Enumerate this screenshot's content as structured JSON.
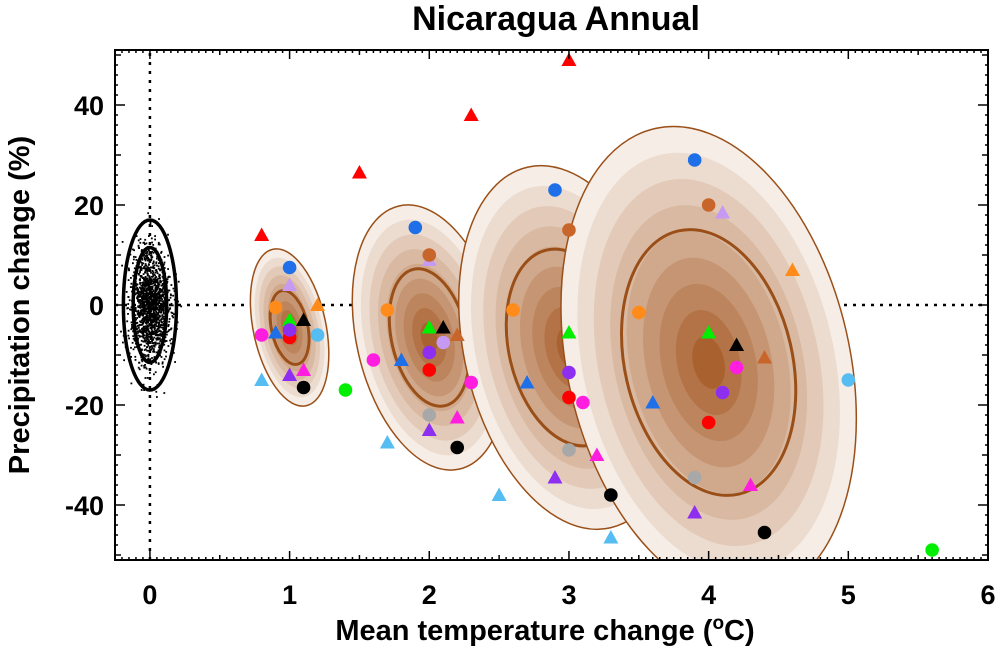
{
  "chart_data": {
    "type": "scatter",
    "title": "Nicaragua Annual",
    "xlabel_main": "Mean temperature change (",
    "xlabel_sup": "o",
    "xlabel_end": "C)",
    "ylabel": "Precipitation change (%)",
    "xlim": [
      -0.25,
      6.0
    ],
    "ylim": [
      -51,
      51
    ],
    "xticks": [
      0,
      1,
      2,
      3,
      4,
      5,
      6
    ],
    "xtick_labels": [
      "0",
      "1",
      "2",
      "3",
      "4",
      "5",
      "6"
    ],
    "yticks": [
      -40,
      -20,
      0,
      20,
      40
    ],
    "ytick_labels": [
      "-40",
      "-20",
      "0",
      "20",
      "40"
    ],
    "colors": {
      "contour_line": "#9a4f18",
      "shade_light": "#f6ede6",
      "shade_dark": "#a9622f",
      "red": "#ff0000",
      "orange": "#ff8c1a",
      "blue": "#1e6fe8",
      "light_blue": "#55bdf2",
      "green": "#00ee00",
      "magenta": "#ff1ee0",
      "violet": "#8e2ef0",
      "lavender": "#c69af2",
      "brown": "#c8652a",
      "gray": "#a8a8a8",
      "black": "#000000"
    },
    "control_distribution": {
      "center": [
        0,
        0
      ],
      "sd_x": 0.07,
      "sd_y": 5.5,
      "n_points": 1600,
      "contours": [
        {
          "rx": 0.12,
          "ry": 11.5
        },
        {
          "rx": 0.19,
          "ry": 17
        }
      ]
    },
    "pdf_ellipses": [
      {
        "center": [
          1.0,
          -4.5
        ],
        "rx": 0.26,
        "ry": 16,
        "angle": -12,
        "inner": [
          0.13,
          7.5
        ]
      },
      {
        "center": [
          2.0,
          -6.5
        ],
        "rx": 0.52,
        "ry": 27,
        "angle": -13,
        "inner": [
          0.27,
          14
        ]
      },
      {
        "center": [
          3.0,
          -8.5
        ],
        "rx": 0.75,
        "ry": 37,
        "angle": -13,
        "inner": [
          0.43,
          20
        ]
      },
      {
        "center": [
          4.0,
          -11.5
        ],
        "rx": 1.01,
        "ry": 48,
        "angle": -13,
        "inner": [
          0.6,
          27
        ]
      }
    ],
    "series": [
      {
        "name": "red-circles",
        "marker": "circle",
        "color": "red",
        "points": [
          [
            1.0,
            -6.5
          ],
          [
            2.0,
            -13
          ],
          [
            3.0,
            -18.5
          ],
          [
            4.0,
            -23.5
          ]
        ]
      },
      {
        "name": "red-triangles",
        "marker": "triangle",
        "color": "red",
        "points": [
          [
            0.8,
            14
          ],
          [
            1.5,
            26.5
          ],
          [
            2.3,
            38
          ],
          [
            3.0,
            49
          ]
        ]
      },
      {
        "name": "orange-circles",
        "marker": "circle",
        "color": "orange",
        "points": [
          [
            0.9,
            -0.5
          ],
          [
            1.7,
            -1
          ],
          [
            2.6,
            -1
          ],
          [
            3.5,
            -1.5
          ]
        ]
      },
      {
        "name": "orange-triangles",
        "marker": "triangle",
        "color": "orange",
        "points": [
          [
            1.2,
            0
          ],
          [
            4.6,
            7
          ]
        ]
      },
      {
        "name": "blue-circles",
        "marker": "circle",
        "color": "blue",
        "points": [
          [
            1.0,
            7.5
          ],
          [
            1.9,
            15.5
          ],
          [
            2.9,
            23
          ],
          [
            3.9,
            29
          ]
        ]
      },
      {
        "name": "blue-triangles",
        "marker": "triangle",
        "color": "blue",
        "points": [
          [
            0.9,
            -5.5
          ],
          [
            1.8,
            -11
          ],
          [
            2.7,
            -15.5
          ],
          [
            3.6,
            -19.5
          ]
        ]
      },
      {
        "name": "light-blue-circles",
        "marker": "circle",
        "color": "light_blue",
        "points": [
          [
            1.2,
            -6
          ],
          [
            5.0,
            -15
          ]
        ]
      },
      {
        "name": "light-blue-triangles",
        "marker": "triangle",
        "color": "light_blue",
        "points": [
          [
            0.8,
            -15
          ],
          [
            1.7,
            -27.5
          ],
          [
            2.5,
            -38
          ],
          [
            3.3,
            -46.5
          ]
        ]
      },
      {
        "name": "green-circles",
        "marker": "circle",
        "color": "green",
        "points": [
          [
            1.4,
            -17
          ],
          [
            5.6,
            -49
          ]
        ]
      },
      {
        "name": "green-triangles",
        "marker": "triangle",
        "color": "green",
        "points": [
          [
            1.0,
            -3
          ],
          [
            2.0,
            -4.5
          ],
          [
            3.0,
            -5.5
          ],
          [
            4.0,
            -5.5
          ]
        ]
      },
      {
        "name": "magenta-circles",
        "marker": "circle",
        "color": "magenta",
        "points": [
          [
            0.8,
            -6
          ],
          [
            1.6,
            -11
          ],
          [
            2.3,
            -15.5
          ],
          [
            3.1,
            -19.5
          ],
          [
            4.2,
            -12.5
          ]
        ]
      },
      {
        "name": "magenta-triangles",
        "marker": "triangle",
        "color": "magenta",
        "points": [
          [
            1.1,
            -13
          ],
          [
            2.2,
            -22.5
          ],
          [
            3.2,
            -30
          ],
          [
            4.3,
            -36
          ]
        ]
      },
      {
        "name": "violet-circles",
        "marker": "circle",
        "color": "violet",
        "points": [
          [
            1.0,
            -5
          ],
          [
            2.0,
            -9.5
          ],
          [
            3.0,
            -13.5
          ],
          [
            4.1,
            -17.5
          ]
        ]
      },
      {
        "name": "violet-triangles",
        "marker": "triangle",
        "color": "violet",
        "points": [
          [
            1.0,
            -14
          ],
          [
            2.0,
            -25
          ],
          [
            2.9,
            -34.5
          ],
          [
            3.9,
            -41.5
          ]
        ]
      },
      {
        "name": "lavender-circles",
        "marker": "circle",
        "color": "lavender",
        "points": [
          [
            2.1,
            -7.5
          ]
        ]
      },
      {
        "name": "lavender-triangles",
        "marker": "triangle",
        "color": "lavender",
        "points": [
          [
            1.0,
            4
          ],
          [
            2.0,
            9
          ],
          [
            4.1,
            18.5
          ]
        ]
      },
      {
        "name": "brown-circles",
        "marker": "circle",
        "color": "brown",
        "points": [
          [
            2.0,
            10
          ],
          [
            3.0,
            15
          ],
          [
            4.0,
            20
          ]
        ]
      },
      {
        "name": "brown-triangles",
        "marker": "triangle",
        "color": "brown",
        "points": [
          [
            2.2,
            -6
          ],
          [
            4.4,
            -10.5
          ]
        ]
      },
      {
        "name": "gray-circles",
        "marker": "circle",
        "color": "gray",
        "points": [
          [
            2.0,
            -22
          ],
          [
            3.0,
            -29
          ],
          [
            3.9,
            -34.5
          ]
        ]
      },
      {
        "name": "black-circles",
        "marker": "circle",
        "color": "black",
        "points": [
          [
            1.1,
            -16.5
          ],
          [
            2.2,
            -28.5
          ],
          [
            3.3,
            -38
          ],
          [
            4.4,
            -45.5
          ]
        ]
      },
      {
        "name": "black-triangles",
        "marker": "triangle",
        "color": "black",
        "points": [
          [
            1.1,
            -3
          ],
          [
            2.1,
            -4.5
          ],
          [
            4.2,
            -8
          ]
        ]
      }
    ]
  }
}
